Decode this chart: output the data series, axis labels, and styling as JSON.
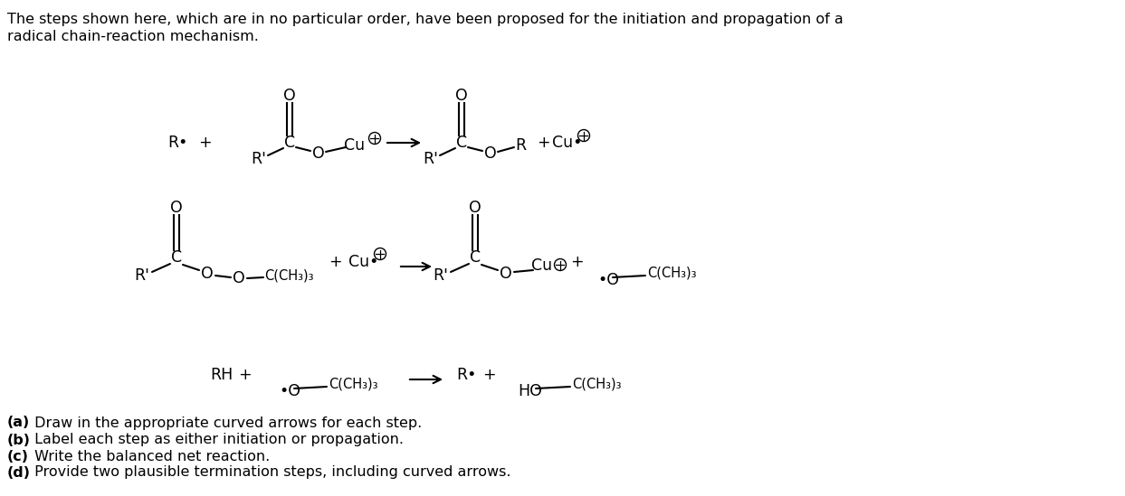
{
  "bg_color": "#ffffff",
  "figsize": [
    12.43,
    5.49
  ],
  "dpi": 100,
  "intro_line1": "The steps shown here, which are in no particular order, have been proposed for the initiation and propagation of a",
  "intro_line2": "radical chain-reaction mechanism.",
  "qa_bold": "(a)",
  "qa_text": " Draw in the appropriate curved arrows for each step.",
  "qb_bold": "(b)",
  "qb_text": " Label each step as either initiation or propagation.",
  "qc_bold": "(c)",
  "qc_text": " Write the balanced net reaction.",
  "qd_bold": "(d)",
  "qd_text": " Provide two plausible termination steps, including curved arrows.",
  "font_size_main": 12.5,
  "font_size_sub": 10.5,
  "font_size_intro": 11.5,
  "font_size_super": 8.5
}
